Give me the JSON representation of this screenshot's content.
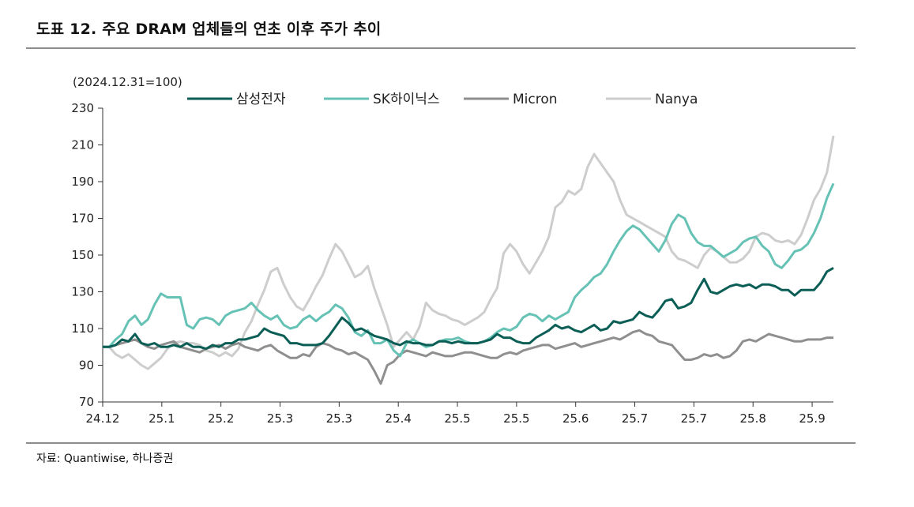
{
  "title": "도표 12. 주요 DRAM 업체들의 연초 이후 주가 추이",
  "source": "자료: Quantiwise, 하나증권",
  "chart_data": {
    "type": "line",
    "unit_label": "(2024.12.31=100)",
    "ylim": [
      70,
      230
    ],
    "yticks": [
      70,
      90,
      110,
      130,
      150,
      170,
      190,
      210,
      230
    ],
    "xticks": [
      "24.12",
      "25.1",
      "25.2",
      "25.3",
      "25.3",
      "25.4",
      "25.5",
      "25.5",
      "25.6",
      "25.7",
      "25.7",
      "25.8",
      "25.9"
    ],
    "grid": false,
    "legend_position": "top",
    "series": [
      {
        "name": "삼성전자",
        "color": "#0b5e55",
        "width": 3,
        "values": [
          100,
          100,
          101,
          104,
          103,
          107,
          102,
          101,
          102,
          100,
          100,
          101,
          100,
          102,
          100,
          100,
          99,
          101,
          100,
          102,
          102,
          104,
          104,
          105,
          106,
          110,
          108,
          107,
          106,
          102,
          102,
          101,
          101,
          101,
          102,
          106,
          111,
          116,
          113,
          109,
          110,
          108,
          106,
          105,
          104,
          102,
          101,
          103,
          102,
          102,
          101,
          101,
          103,
          103,
          102,
          103,
          102,
          102,
          102,
          103,
          104,
          107,
          105,
          105,
          103,
          102,
          102,
          105,
          107,
          109,
          112,
          110,
          111,
          109,
          108,
          110,
          112,
          109,
          110,
          114,
          113,
          114,
          115,
          119,
          117,
          116,
          120,
          125,
          126,
          121,
          122,
          124,
          131,
          137,
          130,
          129,
          131,
          133,
          134,
          133,
          134,
          132,
          134,
          134,
          133,
          131,
          131,
          128,
          131,
          131,
          131,
          135,
          141,
          143
        ]
      },
      {
        "name": "SK하이닉스",
        "color": "#66c2b5",
        "width": 3,
        "values": [
          100,
          100,
          104,
          107,
          114,
          117,
          112,
          115,
          123,
          129,
          127,
          127,
          127,
          112,
          110,
          115,
          116,
          115,
          112,
          117,
          119,
          120,
          121,
          124,
          120,
          117,
          115,
          117,
          112,
          110,
          111,
          115,
          117,
          114,
          117,
          119,
          123,
          121,
          116,
          108,
          106,
          109,
          102,
          102,
          104,
          98,
          95,
          102,
          104,
          102,
          100,
          101,
          103,
          104,
          104,
          105,
          103,
          102,
          102,
          103,
          105,
          108,
          110,
          109,
          111,
          116,
          118,
          117,
          114,
          117,
          115,
          117,
          119,
          127,
          131,
          134,
          138,
          140,
          145,
          152,
          158,
          163,
          166,
          164,
          160,
          156,
          152,
          158,
          167,
          172,
          170,
          162,
          157,
          155,
          155,
          152,
          149,
          151,
          153,
          157,
          159,
          160,
          155,
          152,
          145,
          143,
          147,
          152,
          153,
          156,
          162,
          170,
          181,
          189
        ]
      },
      {
        "name": "Micron",
        "color": "#8f8f8f",
        "width": 3,
        "values": [
          100,
          100,
          101,
          102,
          103,
          104,
          102,
          100,
          99,
          101,
          102,
          103,
          100,
          99,
          98,
          97,
          99,
          100,
          101,
          99,
          101,
          102,
          100,
          99,
          98,
          100,
          101,
          98,
          96,
          94,
          94,
          96,
          95,
          100,
          102,
          101,
          99,
          98,
          96,
          97,
          95,
          93,
          87,
          80,
          90,
          92,
          96,
          98,
          97,
          96,
          95,
          97,
          96,
          95,
          95,
          96,
          97,
          97,
          96,
          95,
          94,
          94,
          96,
          97,
          96,
          98,
          99,
          100,
          101,
          101,
          99,
          100,
          101,
          102,
          100,
          101,
          102,
          103,
          104,
          105,
          104,
          106,
          108,
          109,
          107,
          106,
          103,
          102,
          101,
          97,
          93,
          93,
          94,
          96,
          95,
          96,
          94,
          95,
          98,
          103,
          104,
          103,
          105,
          107,
          106,
          105,
          104,
          103,
          103,
          104,
          104,
          104,
          105,
          105
        ]
      },
      {
        "name": "Nanya",
        "color": "#cdcdcd",
        "width": 3,
        "values": [
          100,
          100,
          96,
          94,
          96,
          93,
          90,
          88,
          91,
          94,
          99,
          102,
          103,
          102,
          102,
          101,
          98,
          97,
          95,
          97,
          95,
          99,
          108,
          114,
          123,
          131,
          141,
          143,
          134,
          127,
          122,
          120,
          126,
          133,
          139,
          148,
          156,
          152,
          145,
          138,
          140,
          144,
          132,
          122,
          112,
          100,
          104,
          108,
          104,
          111,
          124,
          120,
          118,
          117,
          115,
          114,
          112,
          114,
          116,
          119,
          126,
          132,
          151,
          156,
          152,
          145,
          140,
          146,
          152,
          160,
          176,
          179,
          185,
          183,
          186,
          198,
          205,
          200,
          195,
          190,
          180,
          172,
          170,
          168,
          166,
          164,
          162,
          160,
          152,
          148,
          147,
          145,
          143,
          150,
          154,
          152,
          149,
          146,
          146,
          148,
          152,
          160,
          162,
          161,
          158,
          157,
          158,
          156,
          161,
          170,
          180,
          186,
          195,
          215
        ]
      }
    ]
  }
}
